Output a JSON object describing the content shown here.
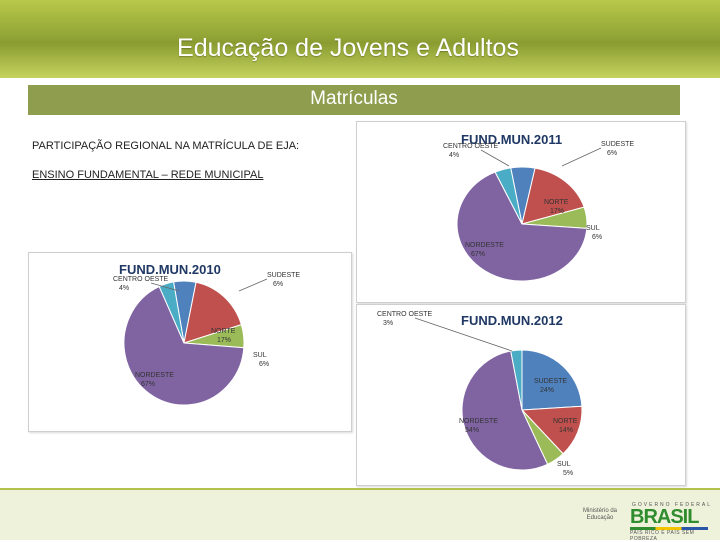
{
  "header": {
    "title": "Educação de Jovens e Adultos"
  },
  "subheader": {
    "title": "Matrículas"
  },
  "body_text": {
    "line1": "PARTICIPAÇÃO REGIONAL NA MATRÍCULA DE EJA:",
    "line2": "ENSINO FUNDAMENTAL – REDE MUNICIPAL"
  },
  "footer": {
    "ministerio": "Ministério da Educação",
    "brasil": "BRASIL",
    "brasil_top": "GOVERNO FEDERAL",
    "brasil_sub": "PAÍS RICO É PAÍS SEM POBREZA"
  },
  "colors": {
    "sudeste": "#4f81bd",
    "norte": "#c0504d",
    "sul": "#9bbb59",
    "nordeste": "#8064a2",
    "centro_oeste": "#4bacc6"
  },
  "chart_data": [
    {
      "type": "pie",
      "title": "FUND.MUN.2010",
      "slices": [
        {
          "label": "SUDESTE",
          "value": 6,
          "text": "6%"
        },
        {
          "label": "NORTE",
          "value": 17,
          "text": "17%"
        },
        {
          "label": "SUL",
          "value": 6,
          "text": "6%"
        },
        {
          "label": "NORDESTE",
          "value": 67,
          "text": "67%"
        },
        {
          "label": "CENTRO OESTE",
          "value": 4,
          "text": "4%"
        }
      ]
    },
    {
      "type": "pie",
      "title": "FUND.MUN.2011",
      "slices": [
        {
          "label": "SUDESTE",
          "value": 6,
          "text": "6%"
        },
        {
          "label": "NORTE",
          "value": 17,
          "text": "17%"
        },
        {
          "label": "SUL",
          "value": 6,
          "text": "6%"
        },
        {
          "label": "NORDESTE",
          "value": 67,
          "text": "67%"
        },
        {
          "label": "CENTRO OESTE",
          "value": 4,
          "text": "4%"
        }
      ]
    },
    {
      "type": "pie",
      "title": "FUND.MUN.2012",
      "slices": [
        {
          "label": "SUDESTE",
          "value": 24,
          "text": "24%"
        },
        {
          "label": "NORTE",
          "value": 14,
          "text": "14%"
        },
        {
          "label": "SUL",
          "value": 5,
          "text": "5%"
        },
        {
          "label": "NORDESTE",
          "value": 54,
          "text": "54%"
        },
        {
          "label": "CENTRO OESTE",
          "value": 3,
          "text": "3%"
        }
      ]
    }
  ]
}
